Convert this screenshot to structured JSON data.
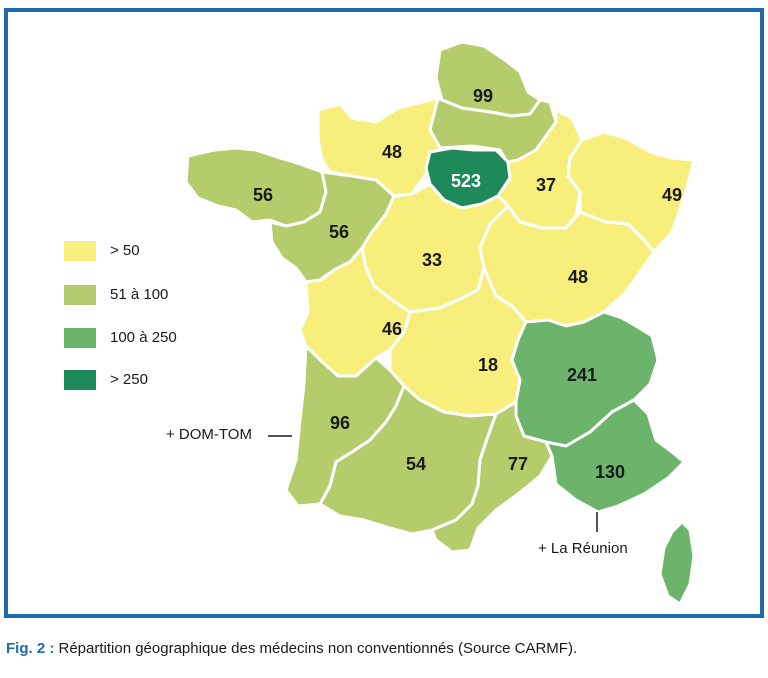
{
  "colors": {
    "frame": "#1f6aa8",
    "lt50": "#f8ee7c",
    "51to100": "#b4cc6c",
    "100to250": "#6cb46c",
    "gt250": "#1e8a5a"
  },
  "legend": [
    {
      "label": "> 50",
      "color": "#f8ee7c"
    },
    {
      "label": "51 à 100",
      "color": "#b4cc6c"
    },
    {
      "label": "100 à 250",
      "color": "#6cb46c"
    },
    {
      "label": "> 250",
      "color": "#1e8a5a"
    }
  ],
  "regions": [
    {
      "value": "99",
      "color": "#b4cc6c"
    },
    {
      "value": "48",
      "color": "#f8ee7c"
    },
    {
      "value": "523",
      "color": "#1e8a5a"
    },
    {
      "value": "56",
      "color": "#b4cc6c"
    },
    {
      "value": "56",
      "color": "#b4cc6c"
    },
    {
      "value": "37",
      "color": "#f8ee7c"
    },
    {
      "value": "49",
      "color": "#f8ee7c"
    },
    {
      "value": "33",
      "color": "#f8ee7c"
    },
    {
      "value": "48",
      "color": "#f8ee7c"
    },
    {
      "value": "46",
      "color": "#f8ee7c"
    },
    {
      "value": "18",
      "color": "#f8ee7c"
    },
    {
      "value": "241",
      "color": "#6cb46c"
    },
    {
      "value": "96",
      "color": "#b4cc6c"
    },
    {
      "value": "54",
      "color": "#b4cc6c"
    },
    {
      "value": "77",
      "color": "#b4cc6c"
    },
    {
      "value": "130",
      "color": "#6cb46c"
    },
    {
      "value": "",
      "color": "#6cb46c"
    }
  ],
  "annotations": {
    "dom_tom": "+ DOM-TOM",
    "reunion": "+ La Réunion"
  },
  "caption": {
    "fig_label": "Fig. 2 :",
    "text": " Répartition géographique des médecins non conventionnés (Source CARMF)."
  }
}
